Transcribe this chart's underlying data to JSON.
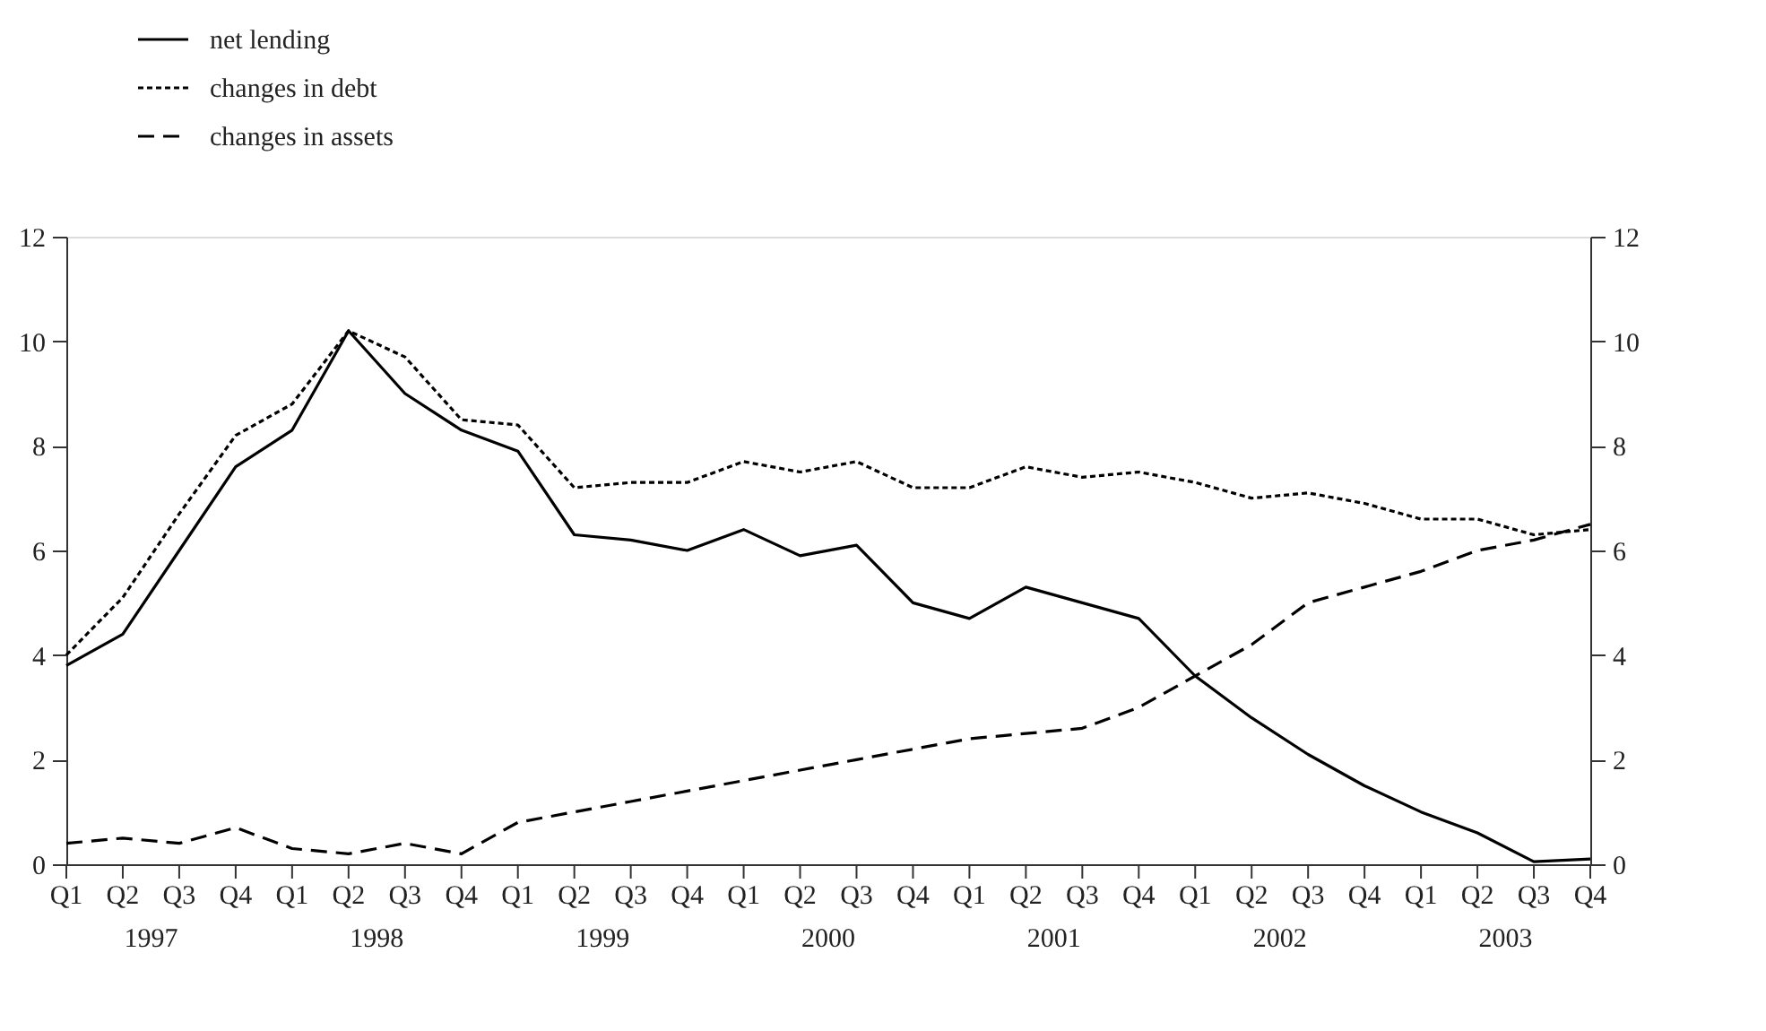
{
  "chart_data": {
    "type": "line",
    "categories": [
      "Q1",
      "Q2",
      "Q3",
      "Q4",
      "Q1",
      "Q2",
      "Q3",
      "Q4",
      "Q1",
      "Q2",
      "Q3",
      "Q4",
      "Q1",
      "Q2",
      "Q3",
      "Q4",
      "Q1",
      "Q2",
      "Q3",
      "Q4",
      "Q1",
      "Q2",
      "Q3",
      "Q4",
      "Q1",
      "Q2",
      "Q3",
      "Q4"
    ],
    "annotations": [
      "1997",
      "1998",
      "1999",
      "2000",
      "2001",
      "2002",
      "2003"
    ],
    "series": [
      {
        "name": "net lending",
        "color": "#000000",
        "line_style": "solid",
        "values": [
          3.8,
          4.4,
          6.0,
          7.6,
          8.3,
          10.2,
          9.0,
          8.3,
          7.9,
          6.3,
          6.2,
          6.0,
          6.4,
          5.9,
          6.1,
          5.0,
          4.7,
          5.3,
          5.0,
          4.7,
          3.6,
          2.8,
          2.1,
          1.5,
          1.0,
          0.6,
          0.05,
          0.1
        ]
      },
      {
        "name": "changes in debt",
        "color": "#000000",
        "line_style": "dotted",
        "values": [
          4.0,
          5.1,
          6.7,
          8.2,
          8.8,
          10.2,
          9.7,
          8.5,
          8.4,
          7.2,
          7.3,
          7.3,
          7.7,
          7.5,
          7.7,
          7.2,
          7.2,
          7.6,
          7.4,
          7.5,
          7.3,
          7.0,
          7.1,
          6.9,
          6.6,
          6.6,
          6.3,
          6.4
        ]
      },
      {
        "name": "changes in assets",
        "color": "#000000",
        "line_style": "dashed",
        "values": [
          0.4,
          0.5,
          0.4,
          0.7,
          0.3,
          0.2,
          0.4,
          0.2,
          0.8,
          1.0,
          1.2,
          1.4,
          1.6,
          1.8,
          2.0,
          2.2,
          2.4,
          2.5,
          2.6,
          3.0,
          3.6,
          4.2,
          5.0,
          5.3,
          5.6,
          6.0,
          6.2,
          6.5
        ]
      }
    ],
    "ylim": [
      0,
      12
    ],
    "yticks": [
      0,
      2,
      4,
      6,
      8,
      10,
      12
    ],
    "y2lim": [
      0,
      12
    ],
    "y2ticks": [
      0,
      2,
      4,
      6,
      8,
      10,
      12
    ],
    "grid": false,
    "legend": "top left",
    "marker": "none"
  }
}
